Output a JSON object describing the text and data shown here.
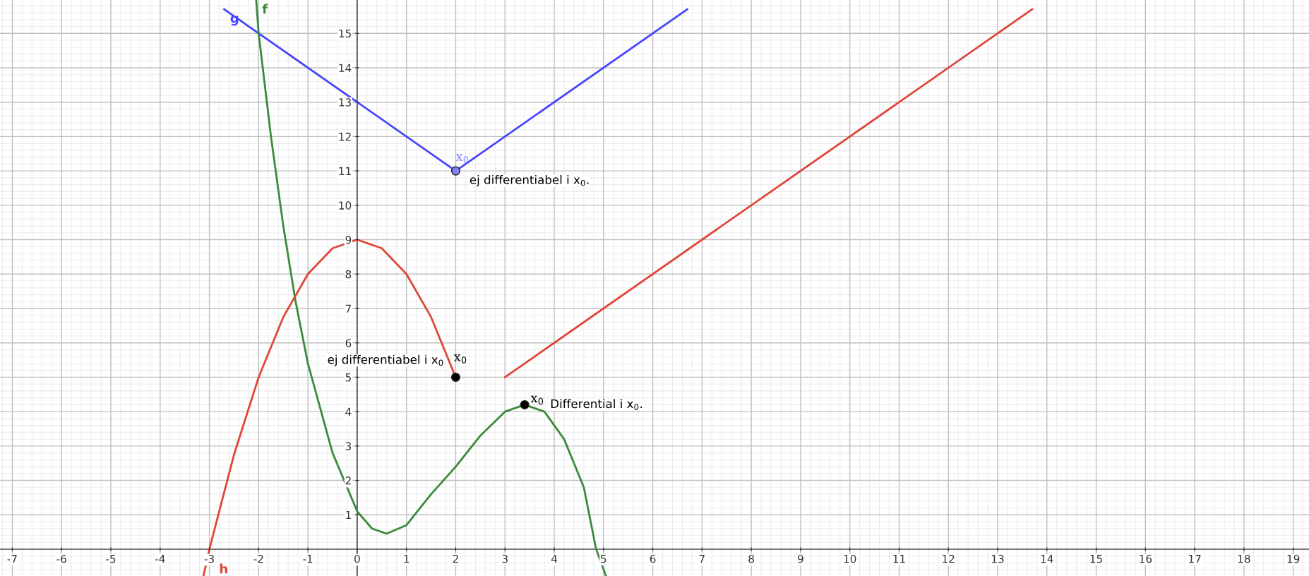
{
  "chart_data": {
    "type": "line",
    "xlim": [
      -7.25,
      19.32
    ],
    "ylim": [
      -0.78,
      15.97
    ],
    "xticks": [
      -7,
      -6,
      -5,
      -4,
      -3,
      -2,
      -1,
      0,
      1,
      2,
      3,
      4,
      5,
      6,
      7,
      8,
      9,
      10,
      11,
      12,
      13,
      14,
      15,
      16,
      17,
      18,
      19
    ],
    "yticks": [
      1,
      2,
      3,
      4,
      5,
      6,
      7,
      8,
      9,
      10,
      11,
      12,
      13,
      14,
      15
    ],
    "grid": true,
    "legend": false,
    "marker": "none",
    "line_style": "solid",
    "series": [
      {
        "name": "g",
        "color": "#4646ff",
        "x": [
          -2.7,
          2,
          6.7
        ],
        "values": [
          15.7,
          11,
          15.7
        ]
      },
      {
        "name": "f",
        "color": "#3b8a3b",
        "x": [
          -2.05,
          -2,
          -1.75,
          -1.5,
          -1.25,
          -1,
          -0.5,
          0,
          0.3,
          0.6,
          1,
          1.5,
          2,
          2.5,
          3,
          3.4,
          3.8,
          4.2,
          4.6,
          4.85,
          5.05
        ],
        "values": [
          15.97,
          15,
          12,
          9.4,
          7.2,
          5.4,
          2.8,
          1.1,
          0.6,
          0.45,
          0.7,
          1.6,
          2.4,
          3.3,
          4.0,
          4.2,
          4.0,
          3.2,
          1.8,
          0,
          -0.78
        ]
      },
      {
        "name": "h",
        "color": "#e0453a",
        "x": [
          -3.12,
          -3,
          -2.5,
          -2,
          -1.5,
          -1,
          -0.5,
          0,
          0.5,
          1,
          1.5,
          2,
          2.5,
          3,
          13.7
        ],
        "values": [
          -0.78,
          0,
          2.75,
          5,
          6.75,
          8,
          8.75,
          9,
          8.75,
          8,
          6.75,
          5,
          null,
          5,
          15.7
        ]
      },
      {
        "type": "scatter",
        "color": "#8080ff",
        "marker": "circle",
        "x": [
          2
        ],
        "values": [
          11
        ]
      },
      {
        "type": "scatter",
        "color": "#000000",
        "marker": "circle",
        "x": [
          2,
          3.4
        ],
        "values": [
          5,
          4.2
        ]
      }
    ],
    "annotations": [
      "x$_{0}$",
      "ej differentiabel i x$_{0}$.",
      "x$_{0}$",
      "ej differentiabel i x$_{0}$",
      "x$_{0}$",
      "Differential i x$_{0}$."
    ]
  }
}
